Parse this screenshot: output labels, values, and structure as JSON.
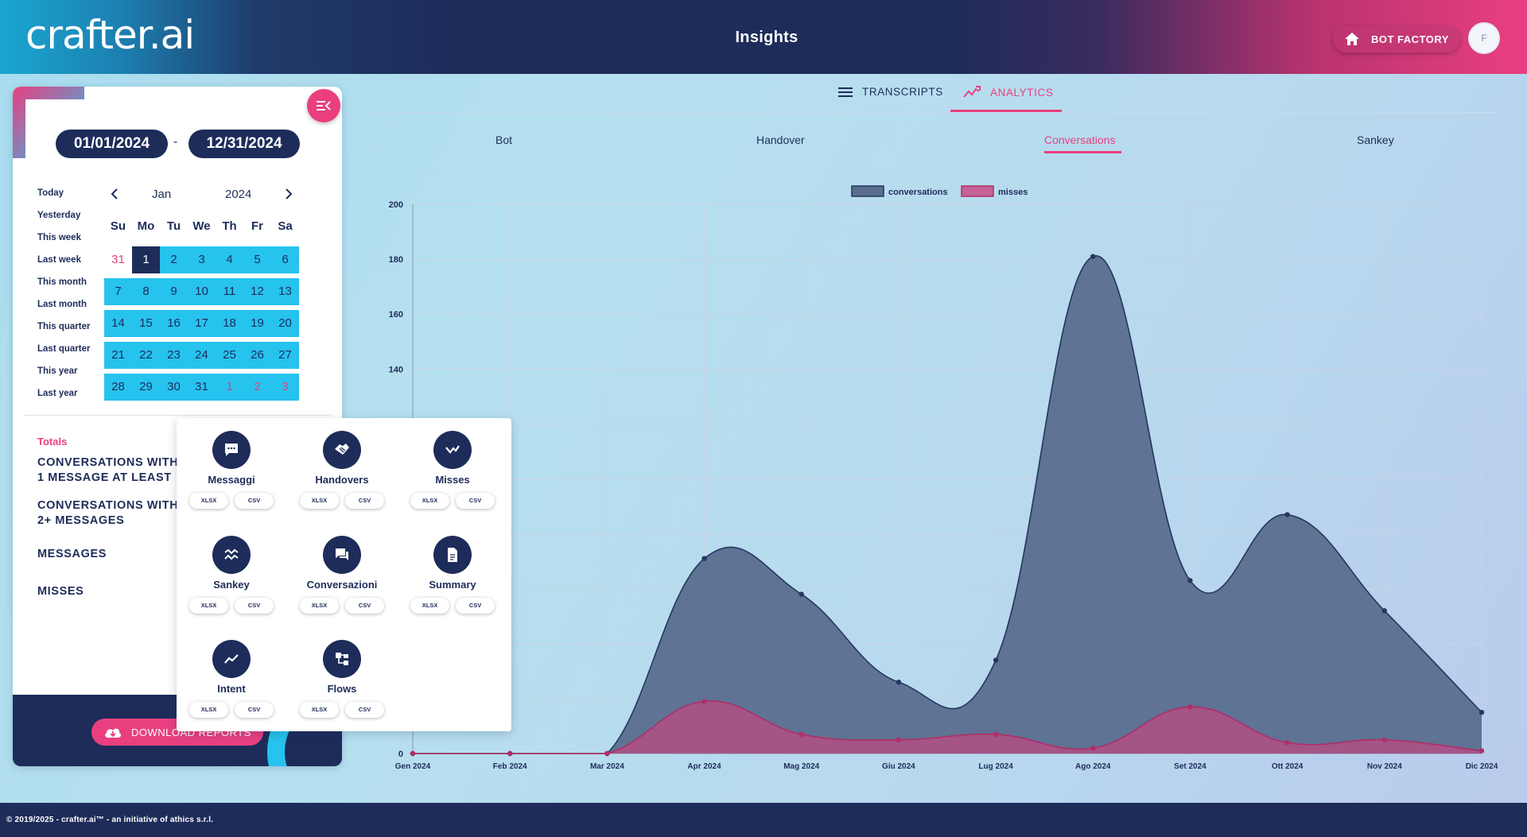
{
  "header": {
    "logo_text": "crafter.ai",
    "title": "Insights",
    "bot_factory_label": "BOT FACTORY",
    "avatar_initial": "F"
  },
  "date_range": {
    "start": "01/01/2024",
    "separator": "-",
    "end": "12/31/2024"
  },
  "quick_ranges": [
    "Today",
    "Yesterday",
    "This week",
    "Last week",
    "This month",
    "Last month",
    "This quarter",
    "Last quarter",
    "This year",
    "Last year"
  ],
  "calendar": {
    "month": "Jan",
    "year": "2024",
    "weekdays": [
      "Su",
      "Mo",
      "Tu",
      "We",
      "Th",
      "Fr",
      "Sa"
    ],
    "weeks": [
      [
        "31",
        "1",
        "2",
        "3",
        "4",
        "5",
        "6"
      ],
      [
        "7",
        "8",
        "9",
        "10",
        "11",
        "12",
        "13"
      ],
      [
        "14",
        "15",
        "16",
        "17",
        "18",
        "19",
        "20"
      ],
      [
        "21",
        "22",
        "23",
        "24",
        "25",
        "26",
        "27"
      ],
      [
        "28",
        "29",
        "30",
        "31",
        "1",
        "2",
        "3"
      ]
    ]
  },
  "totals": {
    "title": "Totals",
    "items": [
      "CONVERSATIONS WITH 1 MESSAGE AT LEAST",
      "CONVERSATIONS WITH 2+ MESSAGES",
      "MESSAGES",
      "MISSES"
    ]
  },
  "download_label": "DOWNLOAD REPORTS",
  "reports": [
    {
      "label": "Messaggi",
      "icon": "message-icon"
    },
    {
      "label": "Handovers",
      "icon": "handshake-icon"
    },
    {
      "label": "Misses",
      "icon": "miss-icon"
    },
    {
      "label": "Sankey",
      "icon": "sankey-icon"
    },
    {
      "label": "Conversazioni",
      "icon": "chat-icon"
    },
    {
      "label": "Summary",
      "icon": "summary-icon"
    },
    {
      "label": "Intent",
      "icon": "trend-icon"
    },
    {
      "label": "Flows",
      "icon": "flows-icon"
    }
  ],
  "report_formats": [
    "XLSX",
    "CSV"
  ],
  "main_tabs": {
    "transcripts": "TRANSCRIPTS",
    "analytics": "ANALYTICS"
  },
  "sub_tabs": [
    "Bot",
    "Handover",
    "Conversations",
    "Sankey"
  ],
  "colors": {
    "navy": "#1e2c5a",
    "pink": "#e93f7f",
    "cyan": "#26c3ee",
    "conversations_fill": "#5a6e8f"
  },
  "chart_data": {
    "type": "area",
    "categories": [
      "Gen 2024",
      "Feb 2024",
      "Mar 2024",
      "Apr 2024",
      "Mag 2024",
      "Giu 2024",
      "Lug 2024",
      "Ago 2024",
      "Set 2024",
      "Ott 2024",
      "Nov 2024",
      "Dic 2024"
    ],
    "series": [
      {
        "name": "conversations",
        "values": [
          0,
          0,
          0,
          71,
          58,
          26,
          34,
          181,
          63,
          87,
          52,
          15
        ]
      },
      {
        "name": "misses",
        "values": [
          0,
          0,
          0,
          19,
          7,
          5,
          7,
          2,
          17,
          4,
          5,
          1
        ]
      }
    ],
    "y_ticks": [
      0,
      140,
      160,
      180,
      200
    ],
    "ylim": [
      0,
      200
    ],
    "grid": true,
    "legend": "top-center"
  },
  "footer_text": "© 2019/2025 - crafter.ai™ - an initiative of athics s.r.l."
}
